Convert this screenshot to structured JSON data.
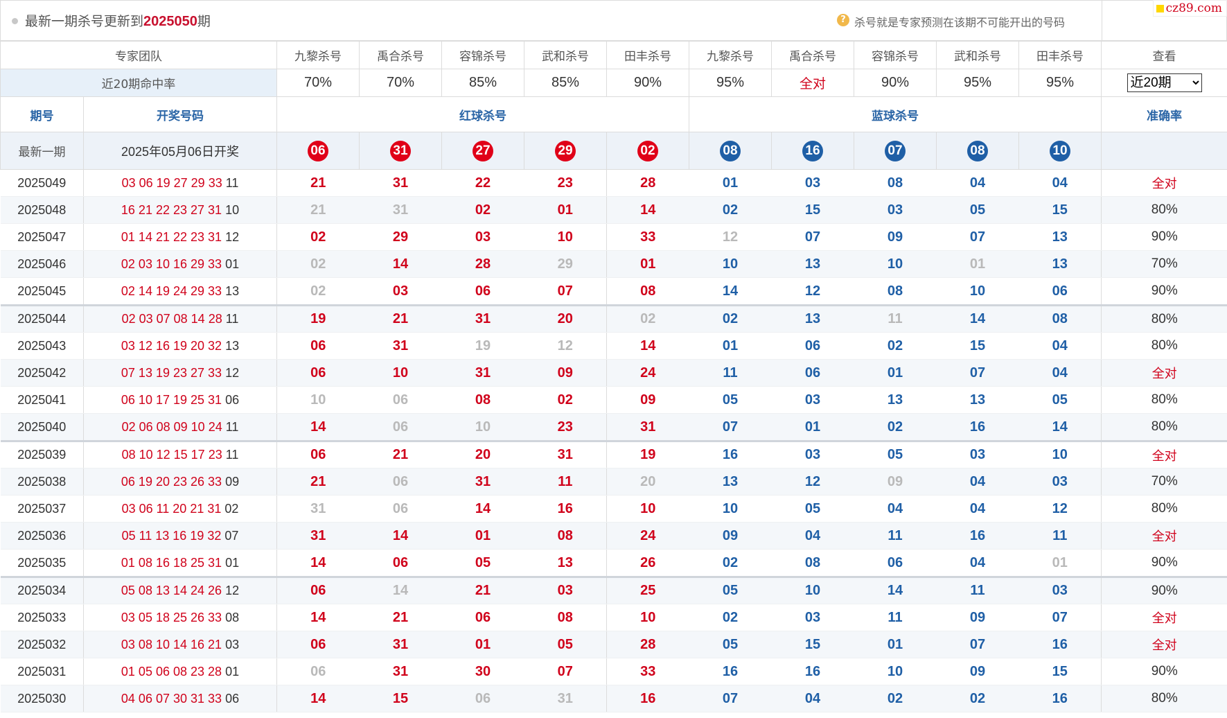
{
  "header": {
    "headline_prefix": "最新一期杀号更新到",
    "headline_issue": "2025050",
    "headline_suffix": "期",
    "help_icon": "question-circle-icon",
    "note": "杀号就是专家预测在该期不可能开出的号码",
    "watermark": "cz89.com"
  },
  "experts": {
    "label": "专家团队",
    "red": [
      "九黎杀号",
      "禹合杀号",
      "容锦杀号",
      "武和杀号",
      "田丰杀号"
    ],
    "blue": [
      "九黎杀号",
      "禹合杀号",
      "容锦杀号",
      "武和杀号",
      "田丰杀号"
    ],
    "view_label": "查看"
  },
  "hit_rate": {
    "label": "近20期命中率",
    "values": [
      "70%",
      "70%",
      "85%",
      "85%",
      "90%",
      "95%",
      "全对",
      "90%",
      "95%",
      "95%"
    ],
    "range_selected": "近20期"
  },
  "columns": {
    "issue": "期号",
    "draw": "开奖号码",
    "red_kill": "红球杀号",
    "blue_kill": "蓝球杀号",
    "accuracy": "准确率"
  },
  "latest": {
    "label": "最新一期",
    "date": "2025年05月06日开奖",
    "red": [
      "06",
      "31",
      "27",
      "29",
      "02"
    ],
    "blue": [
      "08",
      "16",
      "07",
      "08",
      "10"
    ]
  },
  "rows": [
    {
      "issue": "2025049",
      "red": "03 06 19 27 29 33",
      "blue": "11",
      "kr": [
        "21",
        "31",
        "22",
        "23",
        "28"
      ],
      "kb": [
        "01",
        "03",
        "08",
        "04",
        "04"
      ],
      "miss": [],
      "acc": "全对"
    },
    {
      "issue": "2025048",
      "red": "16 21 22 23 27 31",
      "blue": "10",
      "kr": [
        "21",
        "31",
        "02",
        "01",
        "14"
      ],
      "kb": [
        "02",
        "15",
        "03",
        "05",
        "15"
      ],
      "miss": [
        0,
        1
      ],
      "acc": "80%"
    },
    {
      "issue": "2025047",
      "red": "01 14 21 22 23 31",
      "blue": "12",
      "kr": [
        "02",
        "29",
        "03",
        "10",
        "33"
      ],
      "kb": [
        "12",
        "07",
        "09",
        "07",
        "13"
      ],
      "miss": [
        5
      ],
      "acc": "90%"
    },
    {
      "issue": "2025046",
      "red": "02 03 10 16 29 33",
      "blue": "01",
      "kr": [
        "02",
        "14",
        "28",
        "29",
        "01"
      ],
      "kb": [
        "10",
        "13",
        "10",
        "01",
        "13"
      ],
      "miss": [
        0,
        3,
        8
      ],
      "acc": "70%"
    },
    {
      "issue": "2025045",
      "red": "02 14 19 24 29 33",
      "blue": "13",
      "kr": [
        "02",
        "03",
        "06",
        "07",
        "08"
      ],
      "kb": [
        "14",
        "12",
        "08",
        "10",
        "06"
      ],
      "miss": [
        0
      ],
      "acc": "90%"
    },
    {
      "issue": "2025044",
      "red": "02 03 07 08 14 28",
      "blue": "11",
      "kr": [
        "19",
        "21",
        "31",
        "20",
        "02"
      ],
      "kb": [
        "02",
        "13",
        "11",
        "14",
        "08"
      ],
      "miss": [
        4,
        7
      ],
      "acc": "80%"
    },
    {
      "issue": "2025043",
      "red": "03 12 16 19 20 32",
      "blue": "13",
      "kr": [
        "06",
        "31",
        "19",
        "12",
        "14"
      ],
      "kb": [
        "01",
        "06",
        "02",
        "15",
        "04"
      ],
      "miss": [
        2,
        3
      ],
      "acc": "80%"
    },
    {
      "issue": "2025042",
      "red": "07 13 19 23 27 33",
      "blue": "12",
      "kr": [
        "06",
        "10",
        "31",
        "09",
        "24"
      ],
      "kb": [
        "11",
        "06",
        "01",
        "07",
        "04"
      ],
      "miss": [],
      "acc": "全对"
    },
    {
      "issue": "2025041",
      "red": "06 10 17 19 25 31",
      "blue": "06",
      "kr": [
        "10",
        "06",
        "08",
        "02",
        "09"
      ],
      "kb": [
        "05",
        "03",
        "13",
        "13",
        "05"
      ],
      "miss": [
        0,
        1
      ],
      "acc": "80%"
    },
    {
      "issue": "2025040",
      "red": "02 06 08 09 10 24",
      "blue": "11",
      "kr": [
        "14",
        "06",
        "10",
        "23",
        "31"
      ],
      "kb": [
        "07",
        "01",
        "02",
        "16",
        "14"
      ],
      "miss": [
        1,
        2
      ],
      "acc": "80%"
    },
    {
      "issue": "2025039",
      "red": "08 10 12 15 17 23",
      "blue": "11",
      "kr": [
        "06",
        "21",
        "20",
        "31",
        "19"
      ],
      "kb": [
        "16",
        "03",
        "05",
        "03",
        "10"
      ],
      "miss": [],
      "acc": "全对"
    },
    {
      "issue": "2025038",
      "red": "06 19 20 23 26 33",
      "blue": "09",
      "kr": [
        "21",
        "06",
        "31",
        "11",
        "20"
      ],
      "kb": [
        "13",
        "12",
        "09",
        "04",
        "03"
      ],
      "miss": [
        1,
        4,
        7
      ],
      "acc": "70%"
    },
    {
      "issue": "2025037",
      "red": "03 06 11 20 21 31",
      "blue": "02",
      "kr": [
        "31",
        "06",
        "14",
        "16",
        "10"
      ],
      "kb": [
        "10",
        "05",
        "04",
        "04",
        "12"
      ],
      "miss": [
        0,
        1
      ],
      "acc": "80%"
    },
    {
      "issue": "2025036",
      "red": "05 11 13 16 19 32",
      "blue": "07",
      "kr": [
        "31",
        "14",
        "01",
        "08",
        "24"
      ],
      "kb": [
        "09",
        "04",
        "11",
        "16",
        "11"
      ],
      "miss": [],
      "acc": "全对"
    },
    {
      "issue": "2025035",
      "red": "01 08 16 18 25 31",
      "blue": "01",
      "kr": [
        "14",
        "06",
        "05",
        "13",
        "26"
      ],
      "kb": [
        "02",
        "08",
        "06",
        "04",
        "01"
      ],
      "miss": [
        9
      ],
      "acc": "90%"
    },
    {
      "issue": "2025034",
      "red": "05 08 13 14 24 26",
      "blue": "12",
      "kr": [
        "06",
        "14",
        "21",
        "03",
        "25"
      ],
      "kb": [
        "05",
        "10",
        "14",
        "11",
        "03"
      ],
      "miss": [
        1
      ],
      "acc": "90%"
    },
    {
      "issue": "2025033",
      "red": "03 05 18 25 26 33",
      "blue": "08",
      "kr": [
        "14",
        "21",
        "06",
        "08",
        "10"
      ],
      "kb": [
        "02",
        "03",
        "11",
        "09",
        "07"
      ],
      "miss": [],
      "acc": "全对"
    },
    {
      "issue": "2025032",
      "red": "03 08 10 14 16 21",
      "blue": "03",
      "kr": [
        "06",
        "31",
        "01",
        "05",
        "28"
      ],
      "kb": [
        "05",
        "15",
        "01",
        "07",
        "16"
      ],
      "miss": [],
      "acc": "全对"
    },
    {
      "issue": "2025031",
      "red": "01 05 06 08 23 28",
      "blue": "01",
      "kr": [
        "06",
        "31",
        "30",
        "07",
        "33"
      ],
      "kb": [
        "16",
        "16",
        "10",
        "09",
        "15"
      ],
      "miss": [
        0
      ],
      "acc": "90%"
    },
    {
      "issue": "2025030",
      "red": "04 06 07 30 31 33",
      "blue": "06",
      "kr": [
        "14",
        "15",
        "06",
        "31",
        "16"
      ],
      "kb": [
        "07",
        "04",
        "02",
        "02",
        "16"
      ],
      "miss": [
        2,
        3
      ],
      "acc": "80%"
    }
  ]
}
